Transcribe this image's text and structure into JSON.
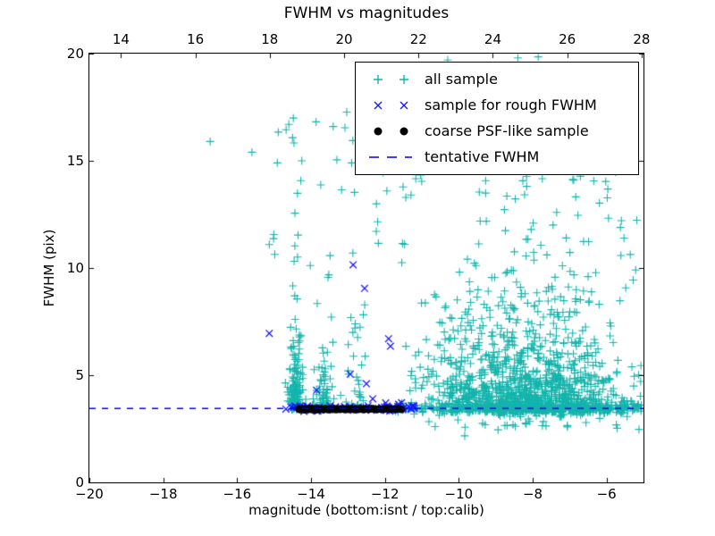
{
  "chart_data": {
    "type": "scatter",
    "title": "FWHM vs magnitudes",
    "xlabel": "magnitude (bottom:isnt / top:calib)",
    "ylabel": "FWHM (pix)",
    "xlim": [
      -20,
      -5
    ],
    "ylim": [
      0,
      20
    ],
    "grid": false,
    "bottom_ticks": {
      "values": [
        -20,
        -18,
        -16,
        -14,
        -12,
        -10,
        -8,
        -6
      ],
      "labels": [
        "−20",
        "−18",
        "−16",
        "−14",
        "−12",
        "−10",
        "−8",
        "−6"
      ]
    },
    "top_axis": {
      "min": 13.15,
      "max": 28.05,
      "values": [
        14,
        16,
        18,
        20,
        22,
        24,
        26,
        28
      ],
      "labels": [
        "14",
        "16",
        "18",
        "20",
        "22",
        "24",
        "26",
        "28"
      ]
    },
    "y_ticks": {
      "values": [
        0,
        5,
        10,
        15,
        20
      ],
      "labels": [
        "0",
        "5",
        "10",
        "15",
        "20"
      ]
    },
    "tentative_fwhm": 3.45,
    "legend": {
      "position": "upper-right"
    },
    "series": [
      {
        "name": "all sample",
        "marker": "plus",
        "color": "#13b4ab",
        "clusters": [
          {
            "n": 130,
            "x": [
              "norm",
              -14.42,
              0.1
            ],
            "xclip": [
              -14.72,
              -14.08
            ],
            "y": [
              "exp",
              3.35,
              1.5
            ],
            "yclip": [
              3.3,
              13.3
            ]
          },
          {
            "n": 8,
            "x": [
              "norm",
              -14.45,
              0.12
            ],
            "y": [
              "uni",
              9.5,
              17.2
            ]
          },
          {
            "n": 60,
            "x": [
              "norm",
              -13.62,
              0.16
            ],
            "xclip": [
              -14.02,
              -13.2
            ],
            "y": [
              "exp",
              3.4,
              1.5
            ],
            "yclip": [
              3.35,
              12
            ]
          },
          {
            "n": 30,
            "x": [
              "norm",
              -12.72,
              0.18
            ],
            "y": [
              "exp",
              3.5,
              2.2
            ],
            "yclip": [
              3.4,
              16.3
            ]
          },
          {
            "n": 34,
            "x": [
              "uni",
              -15.15,
              -11.2
            ],
            "y": [
              "uni",
              9.8,
              17.6
            ]
          },
          {
            "n": 900,
            "x": [
              "norm",
              -7.9,
              1.25
            ],
            "xclip": [
              -11.4,
              -5.03
            ],
            "y": [
              "exp",
              3.25,
              1.9
            ],
            "yclip": [
              3.2,
              14.6
            ]
          },
          {
            "n": 170,
            "x": [
              "norm",
              -9.95,
              0.75
            ],
            "xclip": [
              -11.6,
              -8.6
            ],
            "y": [
              "exp",
              3.3,
              1.5
            ],
            "yclip": [
              3.25,
              12
            ]
          },
          {
            "n": 260,
            "x": [
              "uni",
              -11.75,
              -5.03
            ],
            "y": [
              "norm",
              3.45,
              0.1
            ]
          },
          {
            "n": 200,
            "x": [
              "norm",
              -7.7,
              1.15
            ],
            "xclip": [
              -11.5,
              -5.03
            ],
            "y": [
              "norm",
              3.52,
              0.22
            ]
          },
          {
            "n": 26,
            "x": [
              "uni",
              -11.2,
              -5.05
            ],
            "y": [
              "uni",
              2.45,
              3.2
            ]
          },
          {
            "n": 40,
            "x": [
              "uni",
              -9.6,
              -5.1
            ],
            "y": [
              "uni",
              8.0,
              15.2
            ]
          },
          {
            "n": 8,
            "x": [
              "uni",
              -9.8,
              -6.8
            ],
            "y": [
              "uni",
              17.0,
              18.7
            ]
          },
          {
            "n": 14,
            "x": [
              "uni",
              -12.8,
              -5.6
            ],
            "y": [
              "uni",
              13.8,
              14.9
            ]
          }
        ],
        "points": [
          [
            -16.73,
            15.9
          ],
          [
            -15.6,
            15.4
          ],
          [
            -14.6,
            16.7
          ],
          [
            -13.4,
            16.6
          ],
          [
            -14.25,
            15.0
          ],
          [
            -12.9,
            14.9
          ],
          [
            -9.84,
            2.17
          ],
          [
            -10.3,
            19.7
          ],
          [
            -8.4,
            19.8
          ],
          [
            -7.85,
            19.85
          ],
          [
            -12.6,
            16.4
          ],
          [
            -11.2,
            16.9
          ]
        ]
      },
      {
        "name": "sample for rough FWHM",
        "marker": "cross",
        "color": "#1717ff",
        "clusters": [
          {
            "n": 38,
            "x": [
              "uni",
              -14.6,
              -12.0
            ],
            "y": [
              "norm",
              3.46,
              0.07
            ]
          },
          {
            "n": 22,
            "x": [
              "uni",
              -12.05,
              -11.2
            ],
            "y": [
              "norm",
              3.48,
              0.08
            ]
          }
        ],
        "points": [
          [
            -14.68,
            3.42
          ],
          [
            -12.86,
            10.15
          ],
          [
            -12.55,
            9.05
          ],
          [
            -15.13,
            6.95
          ],
          [
            -11.9,
            6.7
          ],
          [
            -11.85,
            6.35
          ],
          [
            -12.94,
            5.05
          ],
          [
            -12.5,
            4.6
          ],
          [
            -13.85,
            4.3
          ],
          [
            -12.33,
            3.9
          ],
          [
            -11.55,
            3.72
          ]
        ]
      },
      {
        "name": "coarse PSF-like sample",
        "marker": "dot",
        "color": "#000000",
        "clusters": [],
        "points": [
          [
            -14.33,
            3.42
          ],
          [
            -14.28,
            3.4
          ],
          [
            -14.22,
            3.44
          ],
          [
            -14.17,
            3.39
          ],
          [
            -14.12,
            3.43
          ],
          [
            -14.07,
            3.41
          ],
          [
            -14.02,
            3.45
          ],
          [
            -13.97,
            3.4
          ],
          [
            -13.92,
            3.43
          ],
          [
            -13.87,
            3.39
          ],
          [
            -13.82,
            3.44
          ],
          [
            -13.77,
            3.41
          ],
          [
            -13.72,
            3.43
          ],
          [
            -13.67,
            3.4
          ],
          [
            -13.62,
            3.44
          ],
          [
            -13.57,
            3.42
          ],
          [
            -13.52,
            3.4
          ],
          [
            -13.47,
            3.43
          ],
          [
            -13.42,
            3.41
          ],
          [
            -13.37,
            3.44
          ],
          [
            -13.32,
            3.4
          ],
          [
            -13.27,
            3.43
          ],
          [
            -13.22,
            3.41
          ],
          [
            -13.17,
            3.44
          ],
          [
            -13.12,
            3.42
          ],
          [
            -13.07,
            3.4
          ],
          [
            -13.02,
            3.43
          ],
          [
            -12.97,
            3.41
          ],
          [
            -12.92,
            3.44
          ],
          [
            -12.87,
            3.42
          ],
          [
            -12.82,
            3.4
          ],
          [
            -12.77,
            3.43
          ],
          [
            -12.72,
            3.41
          ],
          [
            -12.67,
            3.44
          ],
          [
            -12.62,
            3.42
          ],
          [
            -12.57,
            3.4
          ],
          [
            -12.52,
            3.43
          ],
          [
            -12.45,
            3.41
          ],
          [
            -12.38,
            3.44
          ],
          [
            -12.3,
            3.42
          ],
          [
            -12.22,
            3.4
          ],
          [
            -12.14,
            3.43
          ],
          [
            -12.05,
            3.41
          ],
          [
            -11.95,
            3.44
          ],
          [
            -11.85,
            3.42
          ],
          [
            -11.74,
            3.4
          ],
          [
            -11.64,
            3.43
          ],
          [
            -11.55,
            3.41
          ]
        ]
      },
      {
        "name": "tentative FWHM",
        "marker": "dashed-line",
        "color": "#0000e6",
        "y": 3.45
      }
    ]
  }
}
